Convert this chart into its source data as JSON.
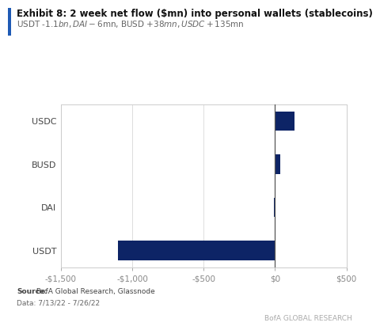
{
  "title": "Exhibit 8: 2 week net flow ($mn) into personal wallets (stablecoins)",
  "subtitle": "USDT -$1.1bn, DAI -$6mn, BUSD +$38mn, USDC +$135mn",
  "categories": [
    "USDT",
    "DAI",
    "BUSD",
    "USDC"
  ],
  "values": [
    -1100,
    -6,
    38,
    135
  ],
  "bar_color": "#0d2466",
  "xlim": [
    -1500,
    500
  ],
  "xticks": [
    -1500,
    -1000,
    -500,
    0,
    500
  ],
  "xtick_labels": [
    "-$1,500",
    "-$1,000",
    "-$500",
    "$0",
    "$500"
  ],
  "source_label": "Source:",
  "source_text": " BofA Global Research, Glassnode",
  "date_text": "Data: 7/13/22 - 7/26/22",
  "branding_text": "BofA GLOBAL RESEARCH",
  "background_color": "#ffffff",
  "accent_color": "#1f5ab5",
  "title_fontsize": 8.5,
  "subtitle_fontsize": 7.5,
  "tick_fontsize": 7.5,
  "ylabel_fontsize": 8,
  "source_fontsize": 6.5,
  "brand_fontsize": 6.5
}
